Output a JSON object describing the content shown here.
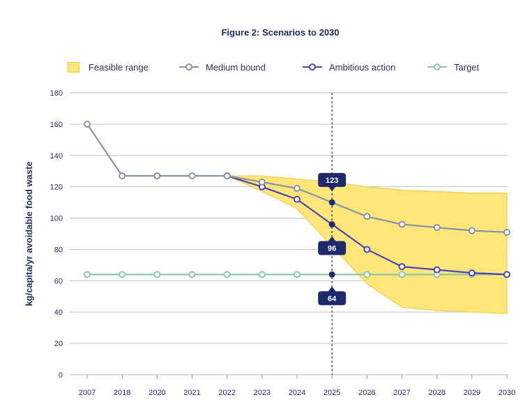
{
  "chart_data": {
    "type": "line",
    "title": "Figure 2: Scenarios to 2030",
    "ylabel": "kg/capita/yr avoidable food waste",
    "categories": [
      "2007",
      "2018",
      "2020",
      "2021",
      "2022",
      "2023",
      "2024",
      "2025",
      "2026",
      "2027",
      "2028",
      "2029",
      "2030"
    ],
    "ylim": [
      0,
      180
    ],
    "yticks": [
      0,
      20,
      40,
      60,
      80,
      100,
      120,
      140,
      160,
      180
    ],
    "grid": true,
    "legend": "top",
    "feasible_range": {
      "name": "Feasible range",
      "color": "#ffe57a",
      "upper": [
        null,
        null,
        null,
        null,
        127,
        127,
        125,
        123,
        120,
        118,
        117,
        116,
        116
      ],
      "lower": [
        null,
        null,
        null,
        null,
        127,
        117,
        106,
        82,
        58,
        43,
        41,
        40,
        39
      ]
    },
    "series": [
      {
        "name": "Medium bound",
        "color": "#8793a5",
        "values": [
          160,
          127,
          127,
          127,
          127,
          123,
          119,
          110,
          101,
          96,
          94,
          92,
          91
        ]
      },
      {
        "name": "Ambitious action",
        "color": "#4b44b5",
        "values": [
          null,
          null,
          null,
          null,
          127,
          120,
          112,
          96,
          80,
          69,
          67,
          65,
          64
        ]
      },
      {
        "name": "Target",
        "color": "#88c8ab",
        "values": [
          64,
          64,
          64,
          64,
          64,
          64,
          64,
          64,
          64,
          64,
          64,
          64,
          64
        ]
      }
    ],
    "reference_line": {
      "category": "2025",
      "style": "dashed"
    },
    "annotations": [
      {
        "category": "2025",
        "value": 123,
        "label": "123",
        "placement": "above"
      },
      {
        "category": "2025",
        "value": 96,
        "label": "96",
        "placement": "below"
      },
      {
        "category": "2025",
        "value": 64,
        "label": "64",
        "placement": "below"
      }
    ],
    "accent_color": "#1e2a6a"
  }
}
